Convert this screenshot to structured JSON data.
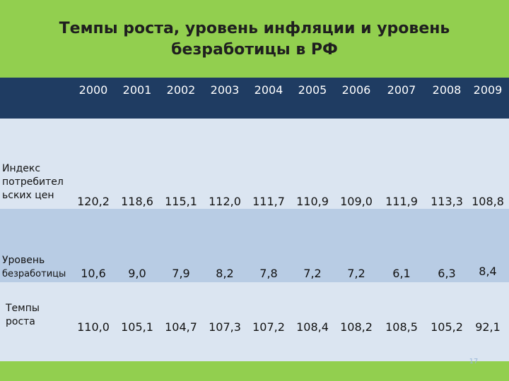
{
  "title_lines": [
    "Темпы роста, уровень инфляции и уровень",
    "безработицы в РФ"
  ],
  "table": {
    "years": [
      "2000",
      "2001",
      "2002",
      "2003",
      "2004",
      "2005",
      "2006",
      "2007",
      "2008",
      "2009"
    ],
    "rows": [
      {
        "label_lines": [
          "Индекс",
          "потребител",
          "ьских цен"
        ],
        "values": [
          "120,2",
          "118,6",
          "115,1",
          "112,0",
          "111,7",
          "110,9",
          "109,0",
          "111,9",
          "113,3",
          "108,8"
        ]
      },
      {
        "label_lines": [
          "Уровень",
          "безработицы"
        ],
        "values": [
          "10,6",
          "9,0",
          "7,9",
          "8,2",
          "7,8",
          "7,2",
          "7,2",
          "6,1",
          "6,3",
          "8,4"
        ]
      },
      {
        "label_lines": [
          "Темпы",
          "роста"
        ],
        "values": [
          "110,0",
          "105,1",
          "104,7",
          "107,3",
          "107,2",
          "108,4",
          "108,2",
          "108,5",
          "105,2",
          "92,1"
        ]
      }
    ]
  },
  "page_number": "17",
  "colors": {
    "green_band": "#92cf4f",
    "header_navy": "#1f3c62",
    "row_light": "#dbe5f1",
    "row_mid": "#b8cce4"
  }
}
